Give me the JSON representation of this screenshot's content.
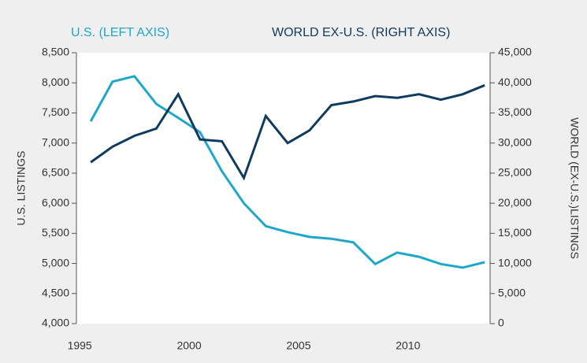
{
  "chart_data": {
    "type": "line",
    "y_label": "U.S. LISTINGS",
    "y2_label": "WORLD (EX-U.S.)LISTINGS",
    "x": [
      1995.5,
      1996.5,
      1997.5,
      1998.5,
      1999.5,
      2000.5,
      2001.5,
      2002.5,
      2003.5,
      2004.5,
      2005.5,
      2006.5,
      2007.5,
      2008.5,
      2009.5,
      2010.5,
      2011.5,
      2012.5,
      2013.5
    ],
    "xlim": [
      1994.85,
      2013.75
    ],
    "xticks": [
      1995,
      2000,
      2005,
      2010
    ],
    "ylim": [
      4000,
      8500
    ],
    "yticks": [
      {
        "value": 4000,
        "label": "4,000"
      },
      {
        "value": 4500,
        "label": "4,500"
      },
      {
        "value": 5000,
        "label": "5,000"
      },
      {
        "value": 5500,
        "label": "5,500"
      },
      {
        "value": 6000,
        "label": "6,000"
      },
      {
        "value": 6500,
        "label": "6,500"
      },
      {
        "value": 7000,
        "label": "7,000"
      },
      {
        "value": 7500,
        "label": "7,500"
      },
      {
        "value": 8000,
        "label": "8,000"
      },
      {
        "value": 8500,
        "label": "8,500"
      }
    ],
    "y2lim": [
      0,
      45000
    ],
    "y2ticks": [
      0,
      {
        "value": 5000,
        "label": "5,000"
      },
      {
        "value": 10000,
        "label": "10,000"
      },
      {
        "value": 15000,
        "label": "15,000"
      },
      {
        "value": 20000,
        "label": "20,000"
      },
      {
        "value": 25000,
        "label": "25,000"
      },
      {
        "value": 30000,
        "label": "30,000"
      },
      {
        "value": 35000,
        "label": "35,000"
      },
      {
        "value": 40000,
        "label": "40,000"
      },
      {
        "value": 45000,
        "label": "45,000"
      }
    ],
    "grid": false,
    "series": [
      {
        "name": "U.S. (LEFT AXIS)",
        "color": "#1ea7c8",
        "axis": "y",
        "values": [
          7360,
          8020,
          8110,
          7650,
          7420,
          7180,
          6530,
          6000,
          5620,
          5520,
          5440,
          5410,
          5350,
          4990,
          5180,
          5110,
          4990,
          4930,
          5020
        ]
      },
      {
        "name": "WORLD EX-U.S. (RIGHT AXIS)",
        "color": "#0f3b5e",
        "axis": "y2",
        "values": [
          26800,
          29400,
          31200,
          32400,
          38100,
          30600,
          30300,
          24200,
          34500,
          30000,
          32100,
          36300,
          36900,
          37800,
          37500,
          38100,
          37200,
          38100,
          39600
        ]
      }
    ]
  }
}
